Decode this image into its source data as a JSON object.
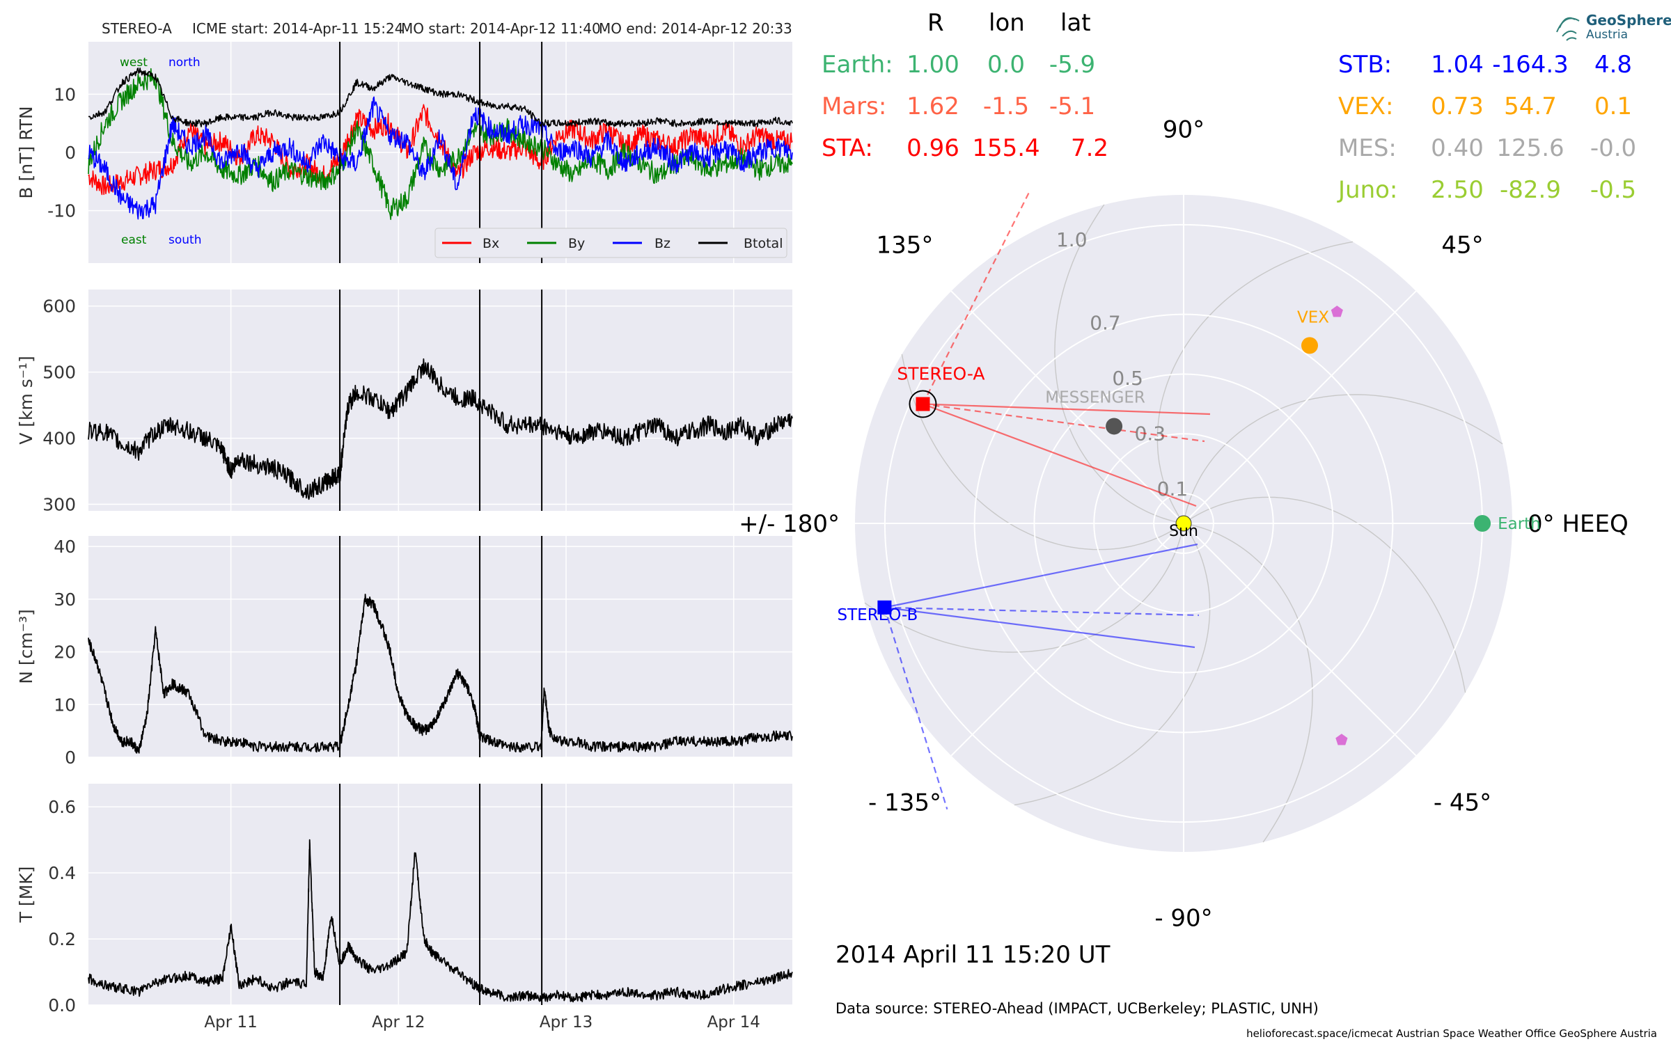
{
  "header": {
    "spacecraft": "STEREO-A",
    "icme_start": "ICME start: 2014-Apr-11 15:24",
    "mo_start": "MO start: 2014-Apr-12 11:40",
    "mo_end": "MO end: 2014-Apr-12 20:33"
  },
  "colors": {
    "panel_bg": "#eaeaf2",
    "grid": "#ffffff",
    "bx": "#ff0000",
    "by": "#008000",
    "bz": "#0000ff",
    "btotal": "#000000",
    "earth": "#3cb371",
    "mars": "#ff6347",
    "sta": "#ff0000",
    "stb": "#0000ff",
    "vex": "#ffa500",
    "mes": "#a9a9a9",
    "juno": "#9acd32",
    "sun": "#ffff00",
    "pentagon": "#da70d6"
  },
  "field_labels": {
    "west": "west",
    "north": "north",
    "east": "east",
    "south": "south"
  },
  "chart_data": [
    {
      "type": "line",
      "panel": "magnetic_field",
      "ylabel": "B [nT] RTN",
      "ylim": [
        -19,
        19
      ],
      "yticks": [
        -10,
        0,
        10
      ],
      "xlim": [
        0,
        4.2
      ],
      "xticks": [
        {
          "x": 0.85,
          "label": "Apr 11"
        },
        {
          "x": 1.85,
          "label": "Apr 12"
        },
        {
          "x": 2.85,
          "label": "Apr 13"
        },
        {
          "x": 3.85,
          "label": "Apr 14"
        }
      ],
      "vlines": [
        1.5,
        2.335,
        2.705
      ],
      "legend": [
        "Bx",
        "By",
        "Bz",
        "Btotal"
      ],
      "legend_position": "lower right",
      "series": [
        {
          "name": "Bx",
          "color": "#ff0000",
          "x": [
            0,
            0.1,
            0.2,
            0.3,
            0.4,
            0.5,
            0.6,
            0.7,
            0.8,
            0.9,
            1.0,
            1.1,
            1.2,
            1.3,
            1.4,
            1.5,
            1.6,
            1.7,
            1.8,
            1.9,
            2.0,
            2.1,
            2.2,
            2.3,
            2.4,
            2.5,
            2.6,
            2.7,
            2.8,
            2.9,
            3.0,
            3.1,
            3.2,
            3.3,
            3.4,
            3.5,
            3.6,
            3.7,
            3.8,
            3.9,
            4.0,
            4.1,
            4.2
          ],
          "y": [
            -4,
            -6,
            -5,
            -4,
            -3,
            -2,
            4,
            1,
            2,
            -1,
            3,
            2,
            -3,
            -2,
            -4,
            -1,
            6,
            4,
            5,
            0,
            7,
            2,
            -4,
            0,
            1,
            0,
            1,
            -2,
            3,
            4,
            2,
            4,
            1,
            3,
            2,
            1,
            3,
            2,
            4,
            1,
            3,
            2,
            2
          ]
        },
        {
          "name": "By",
          "color": "#008000",
          "x": [
            0,
            0.1,
            0.2,
            0.3,
            0.4,
            0.5,
            0.6,
            0.7,
            0.8,
            0.9,
            1.0,
            1.1,
            1.2,
            1.3,
            1.4,
            1.5,
            1.6,
            1.7,
            1.8,
            1.9,
            2.0,
            2.1,
            2.2,
            2.3,
            2.4,
            2.5,
            2.6,
            2.7,
            2.8,
            2.9,
            3.0,
            3.1,
            3.2,
            3.3,
            3.4,
            3.5,
            3.6,
            3.7,
            3.8,
            3.9,
            4.0,
            4.1,
            4.2
          ],
          "y": [
            -2,
            5,
            9,
            12,
            13,
            2,
            -2,
            0,
            -3,
            -4,
            -2,
            -5,
            -3,
            -4,
            -5,
            -3,
            4,
            -2,
            -10,
            -8,
            1,
            -3,
            -1,
            4,
            3,
            4,
            2,
            1,
            -2,
            -4,
            -1,
            -3,
            0,
            -2,
            -4,
            -2,
            -1,
            -3,
            -2,
            -1,
            -3,
            -2,
            -2
          ]
        },
        {
          "name": "Bz",
          "color": "#0000ff",
          "x": [
            0,
            0.1,
            0.2,
            0.3,
            0.4,
            0.5,
            0.6,
            0.7,
            0.8,
            0.9,
            1.0,
            1.1,
            1.2,
            1.3,
            1.4,
            1.5,
            1.6,
            1.7,
            1.8,
            1.9,
            2.0,
            2.1,
            2.2,
            2.3,
            2.4,
            2.5,
            2.6,
            2.7,
            2.8,
            2.9,
            3.0,
            3.1,
            3.2,
            3.3,
            3.4,
            3.5,
            3.6,
            3.7,
            3.8,
            3.9,
            4.0,
            4.1,
            4.2
          ],
          "y": [
            0,
            -3,
            -8,
            -10,
            -9,
            5,
            1,
            3,
            -2,
            1,
            -3,
            0,
            1,
            -2,
            2,
            -1,
            -2,
            8,
            3,
            2,
            -4,
            3,
            -6,
            7,
            4,
            3,
            5,
            4,
            0,
            1,
            -1,
            2,
            -2,
            0,
            1,
            -2,
            0,
            -1,
            1,
            -2,
            0,
            1,
            0
          ]
        },
        {
          "name": "Btotal",
          "color": "#000000",
          "x": [
            0,
            0.1,
            0.2,
            0.3,
            0.4,
            0.5,
            0.6,
            0.7,
            0.8,
            0.9,
            1.0,
            1.1,
            1.2,
            1.3,
            1.4,
            1.5,
            1.6,
            1.7,
            1.8,
            1.9,
            2.0,
            2.1,
            2.2,
            2.3,
            2.4,
            2.5,
            2.6,
            2.7,
            2.8,
            2.9,
            3.0,
            3.1,
            3.2,
            3.3,
            3.4,
            3.5,
            3.6,
            3.7,
            3.8,
            3.9,
            4.0,
            4.1,
            4.2
          ],
          "y": [
            6,
            7,
            12,
            14,
            13,
            6,
            5,
            5,
            6,
            6,
            6,
            7,
            6,
            6,
            6,
            7,
            12,
            11,
            13,
            12,
            11,
            10,
            10,
            9,
            8,
            8,
            7.5,
            5,
            5,
            5,
            5.5,
            5,
            5,
            5,
            5.5,
            5,
            5,
            5.5,
            5,
            5,
            5,
            5.5,
            5
          ]
        }
      ]
    },
    {
      "type": "line",
      "panel": "speed",
      "ylabel": "V [km s⁻¹]",
      "ylim": [
        290,
        625
      ],
      "yticks": [
        300,
        400,
        500,
        600
      ],
      "vlines": [
        1.5,
        2.335,
        2.705
      ],
      "series": [
        {
          "name": "V",
          "color": "#000000",
          "x": [
            0,
            0.1,
            0.2,
            0.3,
            0.4,
            0.5,
            0.6,
            0.7,
            0.8,
            0.85,
            0.9,
            1.0,
            1.1,
            1.2,
            1.3,
            1.4,
            1.45,
            1.5,
            1.55,
            1.6,
            1.7,
            1.8,
            1.9,
            2.0,
            2.1,
            2.2,
            2.3,
            2.4,
            2.5,
            2.6,
            2.7,
            2.8,
            2.9,
            3.0,
            3.1,
            3.2,
            3.3,
            3.4,
            3.5,
            3.6,
            3.7,
            3.8,
            3.9,
            4.0,
            4.1,
            4.2
          ],
          "y": [
            410,
            410,
            390,
            380,
            410,
            420,
            410,
            400,
            380,
            350,
            370,
            360,
            355,
            340,
            320,
            330,
            340,
            345,
            450,
            470,
            460,
            440,
            470,
            510,
            480,
            460,
            460,
            440,
            420,
            420,
            420,
            410,
            400,
            410,
            410,
            400,
            410,
            420,
            400,
            410,
            420,
            410,
            420,
            400,
            420,
            430
          ]
        }
      ]
    },
    {
      "type": "line",
      "panel": "density",
      "ylabel": "N [cm⁻³]",
      "ylim": [
        0,
        42
      ],
      "yticks": [
        0,
        10,
        20,
        30,
        40
      ],
      "vlines": [
        1.5,
        2.335,
        2.705
      ],
      "series": [
        {
          "name": "N",
          "color": "#000000",
          "x": [
            0,
            0.05,
            0.1,
            0.15,
            0.2,
            0.25,
            0.3,
            0.35,
            0.4,
            0.45,
            0.5,
            0.55,
            0.6,
            0.7,
            0.8,
            0.9,
            1.0,
            1.1,
            1.2,
            1.3,
            1.4,
            1.5,
            1.55,
            1.6,
            1.65,
            1.7,
            1.75,
            1.8,
            1.85,
            1.9,
            1.95,
            2.0,
            2.05,
            2.1,
            2.15,
            2.2,
            2.25,
            2.3,
            2.335,
            2.4,
            2.5,
            2.6,
            2.7,
            2.72,
            2.75,
            2.8,
            2.9,
            3.0,
            3.1,
            3.2,
            3.3,
            3.4,
            3.5,
            3.6,
            3.7,
            3.8,
            3.9,
            4.0,
            4.1,
            4.2
          ],
          "y": [
            22,
            18,
            12,
            6,
            3,
            3,
            1,
            8,
            24,
            12,
            14,
            13,
            12,
            4,
            3,
            3,
            2,
            2,
            2,
            2,
            2,
            2,
            10,
            18,
            30,
            29,
            25,
            20,
            12,
            8,
            6,
            5,
            6,
            9,
            12,
            16,
            14,
            10,
            4,
            3,
            2,
            2,
            2,
            13,
            5,
            3,
            3,
            2,
            2,
            2,
            2,
            2,
            3,
            3,
            3,
            3,
            3,
            4,
            4,
            4
          ]
        }
      ]
    },
    {
      "type": "line",
      "panel": "temperature",
      "ylabel": "T [MK]",
      "ylim": [
        0,
        0.67
      ],
      "yticks": [
        0.0,
        0.2,
        0.4,
        0.6
      ],
      "vlines": [
        1.5,
        2.335,
        2.705
      ],
      "series": [
        {
          "name": "T",
          "color": "#000000",
          "x": [
            0,
            0.1,
            0.2,
            0.3,
            0.4,
            0.5,
            0.6,
            0.7,
            0.8,
            0.85,
            0.9,
            1.0,
            1.1,
            1.2,
            1.3,
            1.32,
            1.35,
            1.4,
            1.45,
            1.5,
            1.55,
            1.6,
            1.7,
            1.8,
            1.9,
            1.95,
            2.0,
            2.05,
            2.1,
            2.2,
            2.3,
            2.335,
            2.4,
            2.5,
            2.6,
            2.7,
            2.8,
            2.9,
            3.0,
            3.1,
            3.2,
            3.3,
            3.4,
            3.5,
            3.6,
            3.7,
            3.8,
            3.9,
            4.0,
            4.1,
            4.2
          ],
          "y": [
            0.08,
            0.06,
            0.05,
            0.04,
            0.07,
            0.08,
            0.09,
            0.07,
            0.08,
            0.24,
            0.06,
            0.08,
            0.05,
            0.07,
            0.06,
            0.49,
            0.1,
            0.08,
            0.27,
            0.12,
            0.18,
            0.14,
            0.1,
            0.12,
            0.16,
            0.47,
            0.2,
            0.16,
            0.14,
            0.1,
            0.06,
            0.05,
            0.04,
            0.02,
            0.03,
            0.02,
            0.03,
            0.02,
            0.03,
            0.03,
            0.04,
            0.03,
            0.03,
            0.04,
            0.03,
            0.03,
            0.05,
            0.06,
            0.07,
            0.08,
            0.1
          ]
        }
      ]
    },
    {
      "type": "polar",
      "panel": "positions",
      "angular_labels": {
        "a0": "0° HEEQ",
        "a45": "45°",
        "a90": "90°",
        "a135": "135°",
        "a180": "+/- 180°",
        "am135": "- 135°",
        "am90": "- 90°",
        "am45": "- 45°"
      },
      "radial_labels": [
        "0.1",
        "0.3",
        "0.5",
        "0.7",
        "1.0"
      ],
      "radial_ticks": [
        0.1,
        0.3,
        0.5,
        0.7,
        1.0
      ],
      "objects": [
        {
          "name": "Sun",
          "label": "Sun",
          "r": 0.0,
          "lon": 0.0
        },
        {
          "name": "Earth",
          "label": "Earth",
          "r": 1.0,
          "lon": 0.0
        },
        {
          "name": "VEX",
          "label": "VEX",
          "r": 0.73,
          "lon": 54.7
        },
        {
          "name": "MESSENGER",
          "label": "MESSENGER",
          "r": 0.4,
          "lon": 125.6
        },
        {
          "name": "STEREO-A",
          "label": "STEREO-A",
          "r": 0.96,
          "lon": 155.4
        },
        {
          "name": "STEREO-B",
          "label": "STEREO-B",
          "r": 1.04,
          "lon": -164.3
        }
      ]
    }
  ],
  "positions_table": {
    "headers": {
      "r": "R",
      "lon": "lon",
      "lat": "lat"
    },
    "left_rows": [
      {
        "name": "Earth:",
        "r": "1.00",
        "lon": "0.0",
        "lat": "-5.9"
      },
      {
        "name": "Mars:",
        "r": "1.62",
        "lon": "-1.5",
        "lat": "-5.1"
      },
      {
        "name": "STA:",
        "r": "0.96",
        "lon": "155.4",
        "lat": "7.2"
      }
    ],
    "right_rows": [
      {
        "name": "STB:",
        "r": "1.04",
        "lon": "-164.3",
        "lat": "4.8"
      },
      {
        "name": "VEX:",
        "r": "0.73",
        "lon": "54.7",
        "lat": "0.1"
      },
      {
        "name": "MES:",
        "r": "0.40",
        "lon": "125.6",
        "lat": "-0.0"
      },
      {
        "name": "Juno:",
        "r": "2.50",
        "lon": "-82.9",
        "lat": "-0.5"
      }
    ]
  },
  "timestamp": "2014 April 11  15:20 UT",
  "data_source": "Data source: STEREO-Ahead (IMPACT, UCBerkeley; PLASTIC, UNH)",
  "footer": "helioforecast.space/icmecat   Austrian Space Weather Office   GeoSphere Austria",
  "logo": {
    "name": "GeoSphere",
    "sub": "Austria"
  }
}
